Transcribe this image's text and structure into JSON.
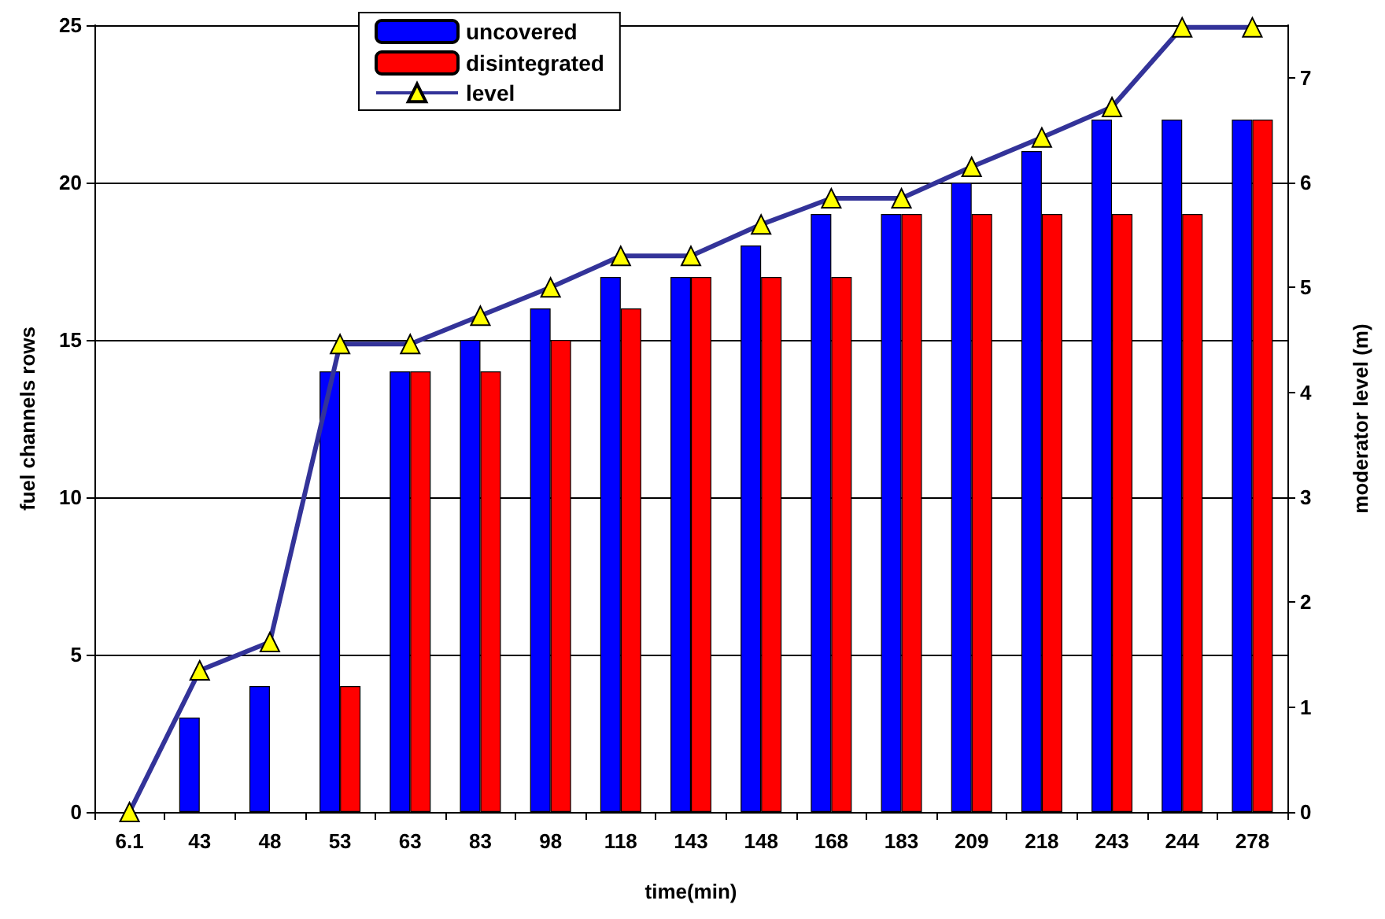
{
  "chart_data": {
    "type": "bar",
    "xlabel": "time(min)",
    "ylabel": "fuel channels rows",
    "y2label": "moderator level (m)",
    "categories": [
      "6.1",
      "43",
      "48",
      "53",
      "63",
      "83",
      "98",
      "118",
      "143",
      "148",
      "168",
      "183",
      "209",
      "218",
      "243",
      "244",
      "278"
    ],
    "series": [
      {
        "name": "uncovered",
        "color": "#0000ff",
        "values": [
          0,
          3,
          4,
          14,
          14,
          15,
          16,
          17,
          17,
          18,
          19,
          19,
          20,
          21,
          22,
          22,
          22
        ]
      },
      {
        "name": "disintegrated",
        "color": "#ff0000",
        "values": [
          0,
          0,
          0,
          4,
          14,
          14,
          15,
          16,
          17,
          17,
          17,
          19,
          19,
          19,
          19,
          19,
          22
        ]
      },
      {
        "name": "level",
        "type": "line",
        "axis": "y2",
        "color": "#333399",
        "marker": "triangle",
        "values": [
          0,
          1.35,
          1.62,
          4.46,
          4.46,
          4.73,
          5.0,
          5.3,
          5.3,
          5.6,
          5.85,
          5.85,
          6.15,
          6.43,
          6.72,
          7.48,
          7.48
        ]
      }
    ],
    "ylim": [
      0,
      25
    ],
    "yticks": [
      0,
      5,
      10,
      15,
      20,
      25
    ],
    "y2lim": [
      0,
      7.5
    ],
    "y2ticks": [
      0,
      1,
      2,
      3,
      4,
      5,
      6,
      7
    ],
    "grid": "y",
    "legend": "top"
  }
}
